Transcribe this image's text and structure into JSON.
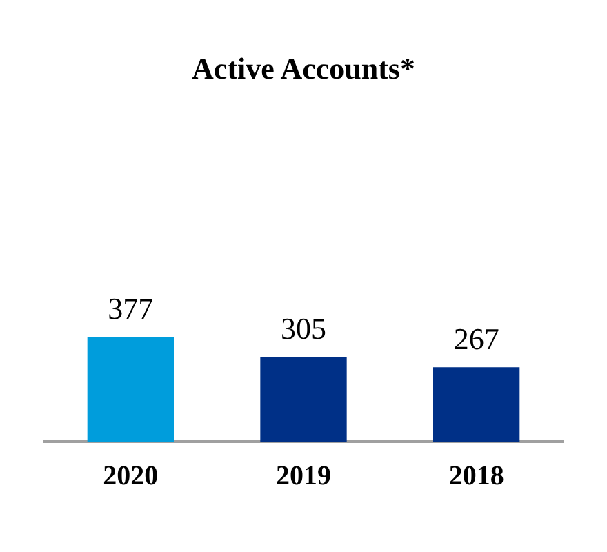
{
  "chart_data": {
    "type": "bar",
    "title": "Active Accounts*",
    "categories": [
      "2020",
      "2019",
      "2018"
    ],
    "values": [
      377,
      305,
      267
    ],
    "colors": [
      "#009ddc",
      "#003087",
      "#003087"
    ],
    "data_labels": true,
    "grid": false,
    "legend": false
  }
}
